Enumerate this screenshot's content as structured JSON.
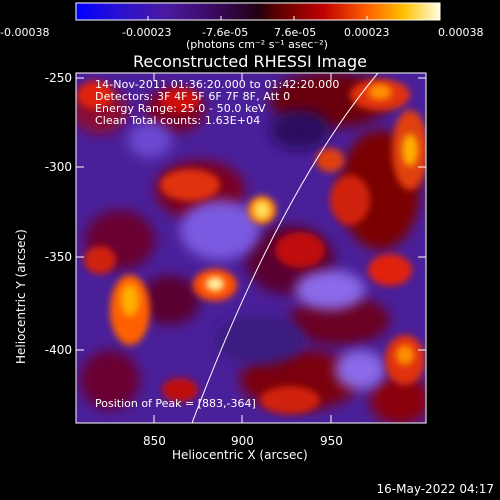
{
  "colorbar": {
    "tick_labels": [
      "-0.00038",
      "-0.00023",
      "-7.6e-05",
      "7.6e-05",
      "0.00023",
      "0.00038"
    ],
    "units": "(photons cm⁻² s⁻¹ asec⁻²)"
  },
  "plot": {
    "title": "Reconstructed RHESSI Image",
    "info_lines": [
      "14-Nov-2011 01:36:20.000 to 01:42:20.000",
      "Detectors: 3F 4F 5F 6F 7F 8F, Att 0",
      "Energy Range: 25.0 - 50.0 keV",
      "Clean    Total counts: 1.63E+04"
    ],
    "peak_label": "Position of Peak = [883,-364]",
    "x_axis": {
      "label": "Heliocentric X (arcsec)",
      "ticks": [
        "850",
        "900",
        "950"
      ]
    },
    "y_axis": {
      "label": "Heliocentric Y (arcsec)",
      "ticks": [
        "-250",
        "-300",
        "-350",
        "-400"
      ]
    },
    "limb_color": "#ffffff"
  },
  "timestamp": "16-May-2022 04:17",
  "colors": {
    "colormap": [
      "#000000",
      "#3a1a8a",
      "#6a3ad0",
      "#9a2a70",
      "#d01010",
      "#ff6a00",
      "#ffc800",
      "#ffffff"
    ]
  }
}
